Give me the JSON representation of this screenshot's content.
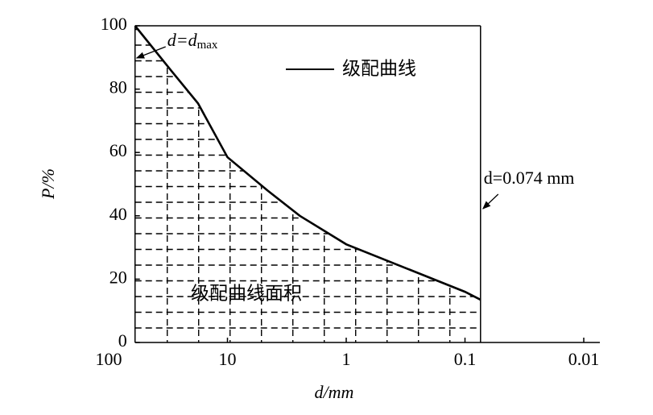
{
  "chart_data": {
    "type": "line",
    "x_label": "d/mm",
    "y_label": "P/%",
    "x": [
      60,
      30,
      17.7,
      10,
      4.6,
      2.46,
      1,
      0.316,
      0.1,
      0.074
    ],
    "series": [
      {
        "name": "级配曲线",
        "color": "#000000",
        "values": [
          100,
          86,
          75.5,
          58.5,
          48,
          40,
          31,
          23.5,
          16,
          13.5
        ]
      }
    ],
    "xlim": [
      100,
      0.01
    ],
    "xticks": [
      100,
      10,
      1,
      0.1,
      0.01
    ],
    "xscale": "log",
    "ylim": [
      0,
      100
    ],
    "yticks": [
      0,
      20,
      40,
      60,
      80,
      100
    ],
    "area_label": "级配曲线面积",
    "annotations": [
      {
        "x": 60,
        "text": "d=d",
        "sub": "max"
      },
      {
        "x": 0.074,
        "text": "d=0.074 mm"
      }
    ]
  }
}
